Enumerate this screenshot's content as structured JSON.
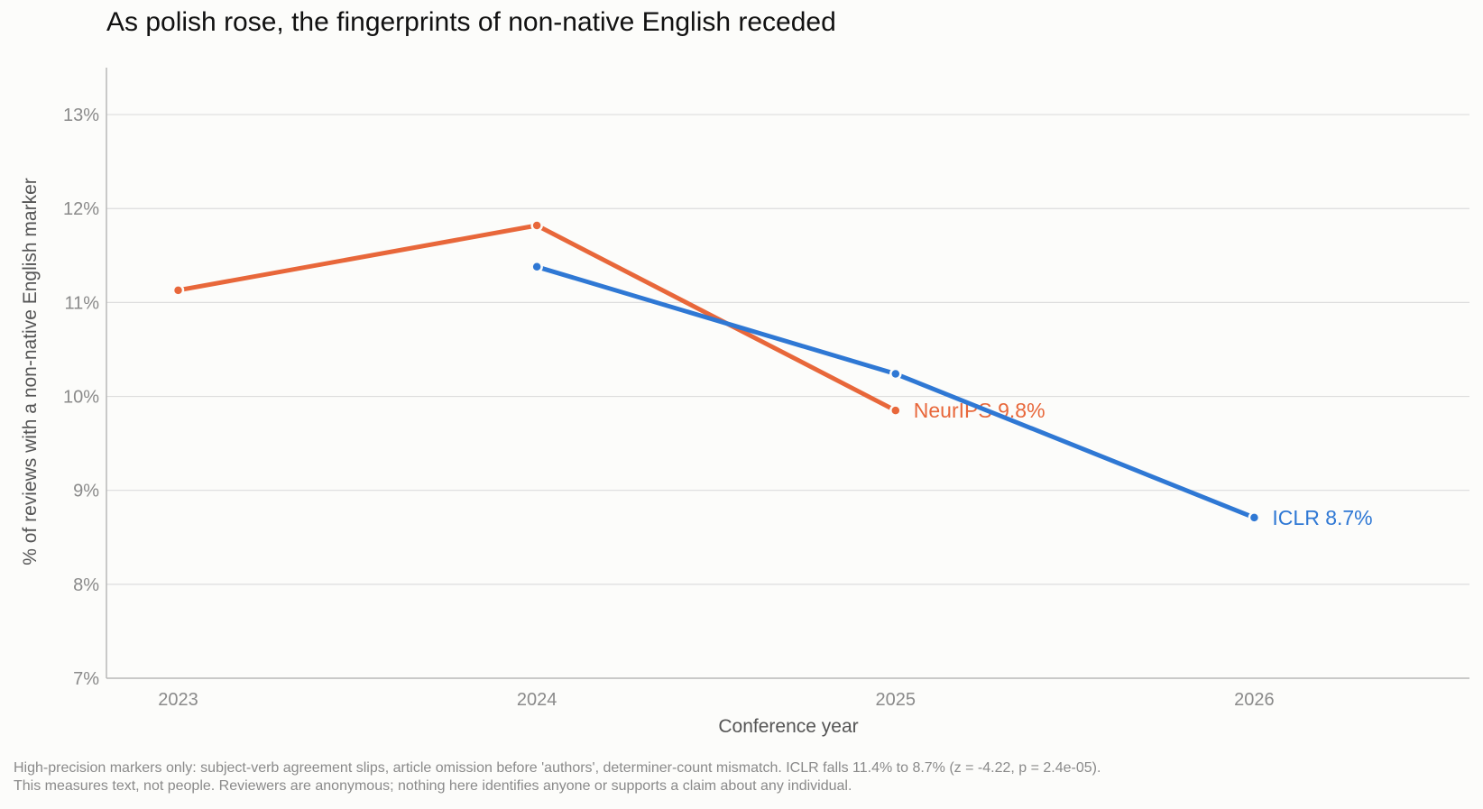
{
  "chart_data": {
    "type": "line",
    "title": "As polish rose, the fingerprints of non-native English receded",
    "xlabel": "Conference year",
    "ylabel": "% of reviews with a non-native English marker",
    "x": [
      2023,
      2024,
      2025,
      2026
    ],
    "xlim": [
      2022.8,
      2026.6
    ],
    "ylim": [
      7,
      13.5
    ],
    "yticks": [
      7,
      8,
      9,
      10,
      11,
      12,
      13
    ],
    "ytick_labels": [
      "7%",
      "8%",
      "9%",
      "10%",
      "11%",
      "12%",
      "13%"
    ],
    "xtick_labels": [
      "2023",
      "2024",
      "2025",
      "2026"
    ],
    "grid": true,
    "series": [
      {
        "name": "NeurIPS",
        "color": "#e8673a",
        "x": [
          2023,
          2024,
          2025
        ],
        "values": [
          11.13,
          11.82,
          9.85
        ],
        "end_label": "NeurIPS  9.8%"
      },
      {
        "name": "ICLR",
        "color": "#2f78d4",
        "x": [
          2024,
          2025,
          2026
        ],
        "values": [
          11.38,
          10.24,
          8.71
        ],
        "end_label": "ICLR  8.7%"
      }
    ]
  },
  "footnote": {
    "line1": "High-precision markers only: subject-verb agreement slips, article omission before 'authors', determiner-count mismatch. ICLR falls 11.4% to 8.7% (z = -4.22, p = 2.4e-05).",
    "line2": "This measures text, not people. Reviewers are anonymous; nothing here identifies anyone or supports a claim about any individual."
  }
}
